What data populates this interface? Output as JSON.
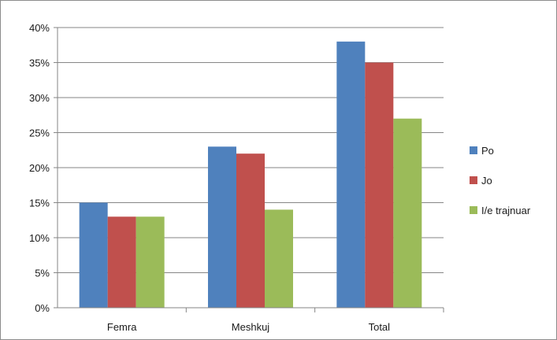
{
  "chart_data": {
    "type": "bar",
    "title": "",
    "xlabel": "",
    "ylabel": "",
    "categories": [
      "Femra",
      "Meshkuj",
      "Total"
    ],
    "series": [
      {
        "name": "Po",
        "color": "#4f81bd",
        "values": [
          15,
          23,
          38
        ]
      },
      {
        "name": "Jo",
        "color": "#c0504d",
        "values": [
          13,
          22,
          35
        ]
      },
      {
        "name": "I/e trajnuar",
        "color": "#9bbb59",
        "values": [
          13,
          14,
          27
        ]
      }
    ],
    "ylim": [
      0,
      40
    ],
    "y_ticks": [
      "0%",
      "5%",
      "10%",
      "15%",
      "20%",
      "25%",
      "30%",
      "35%",
      "40%"
    ],
    "grid": true,
    "legend_position": "right"
  }
}
